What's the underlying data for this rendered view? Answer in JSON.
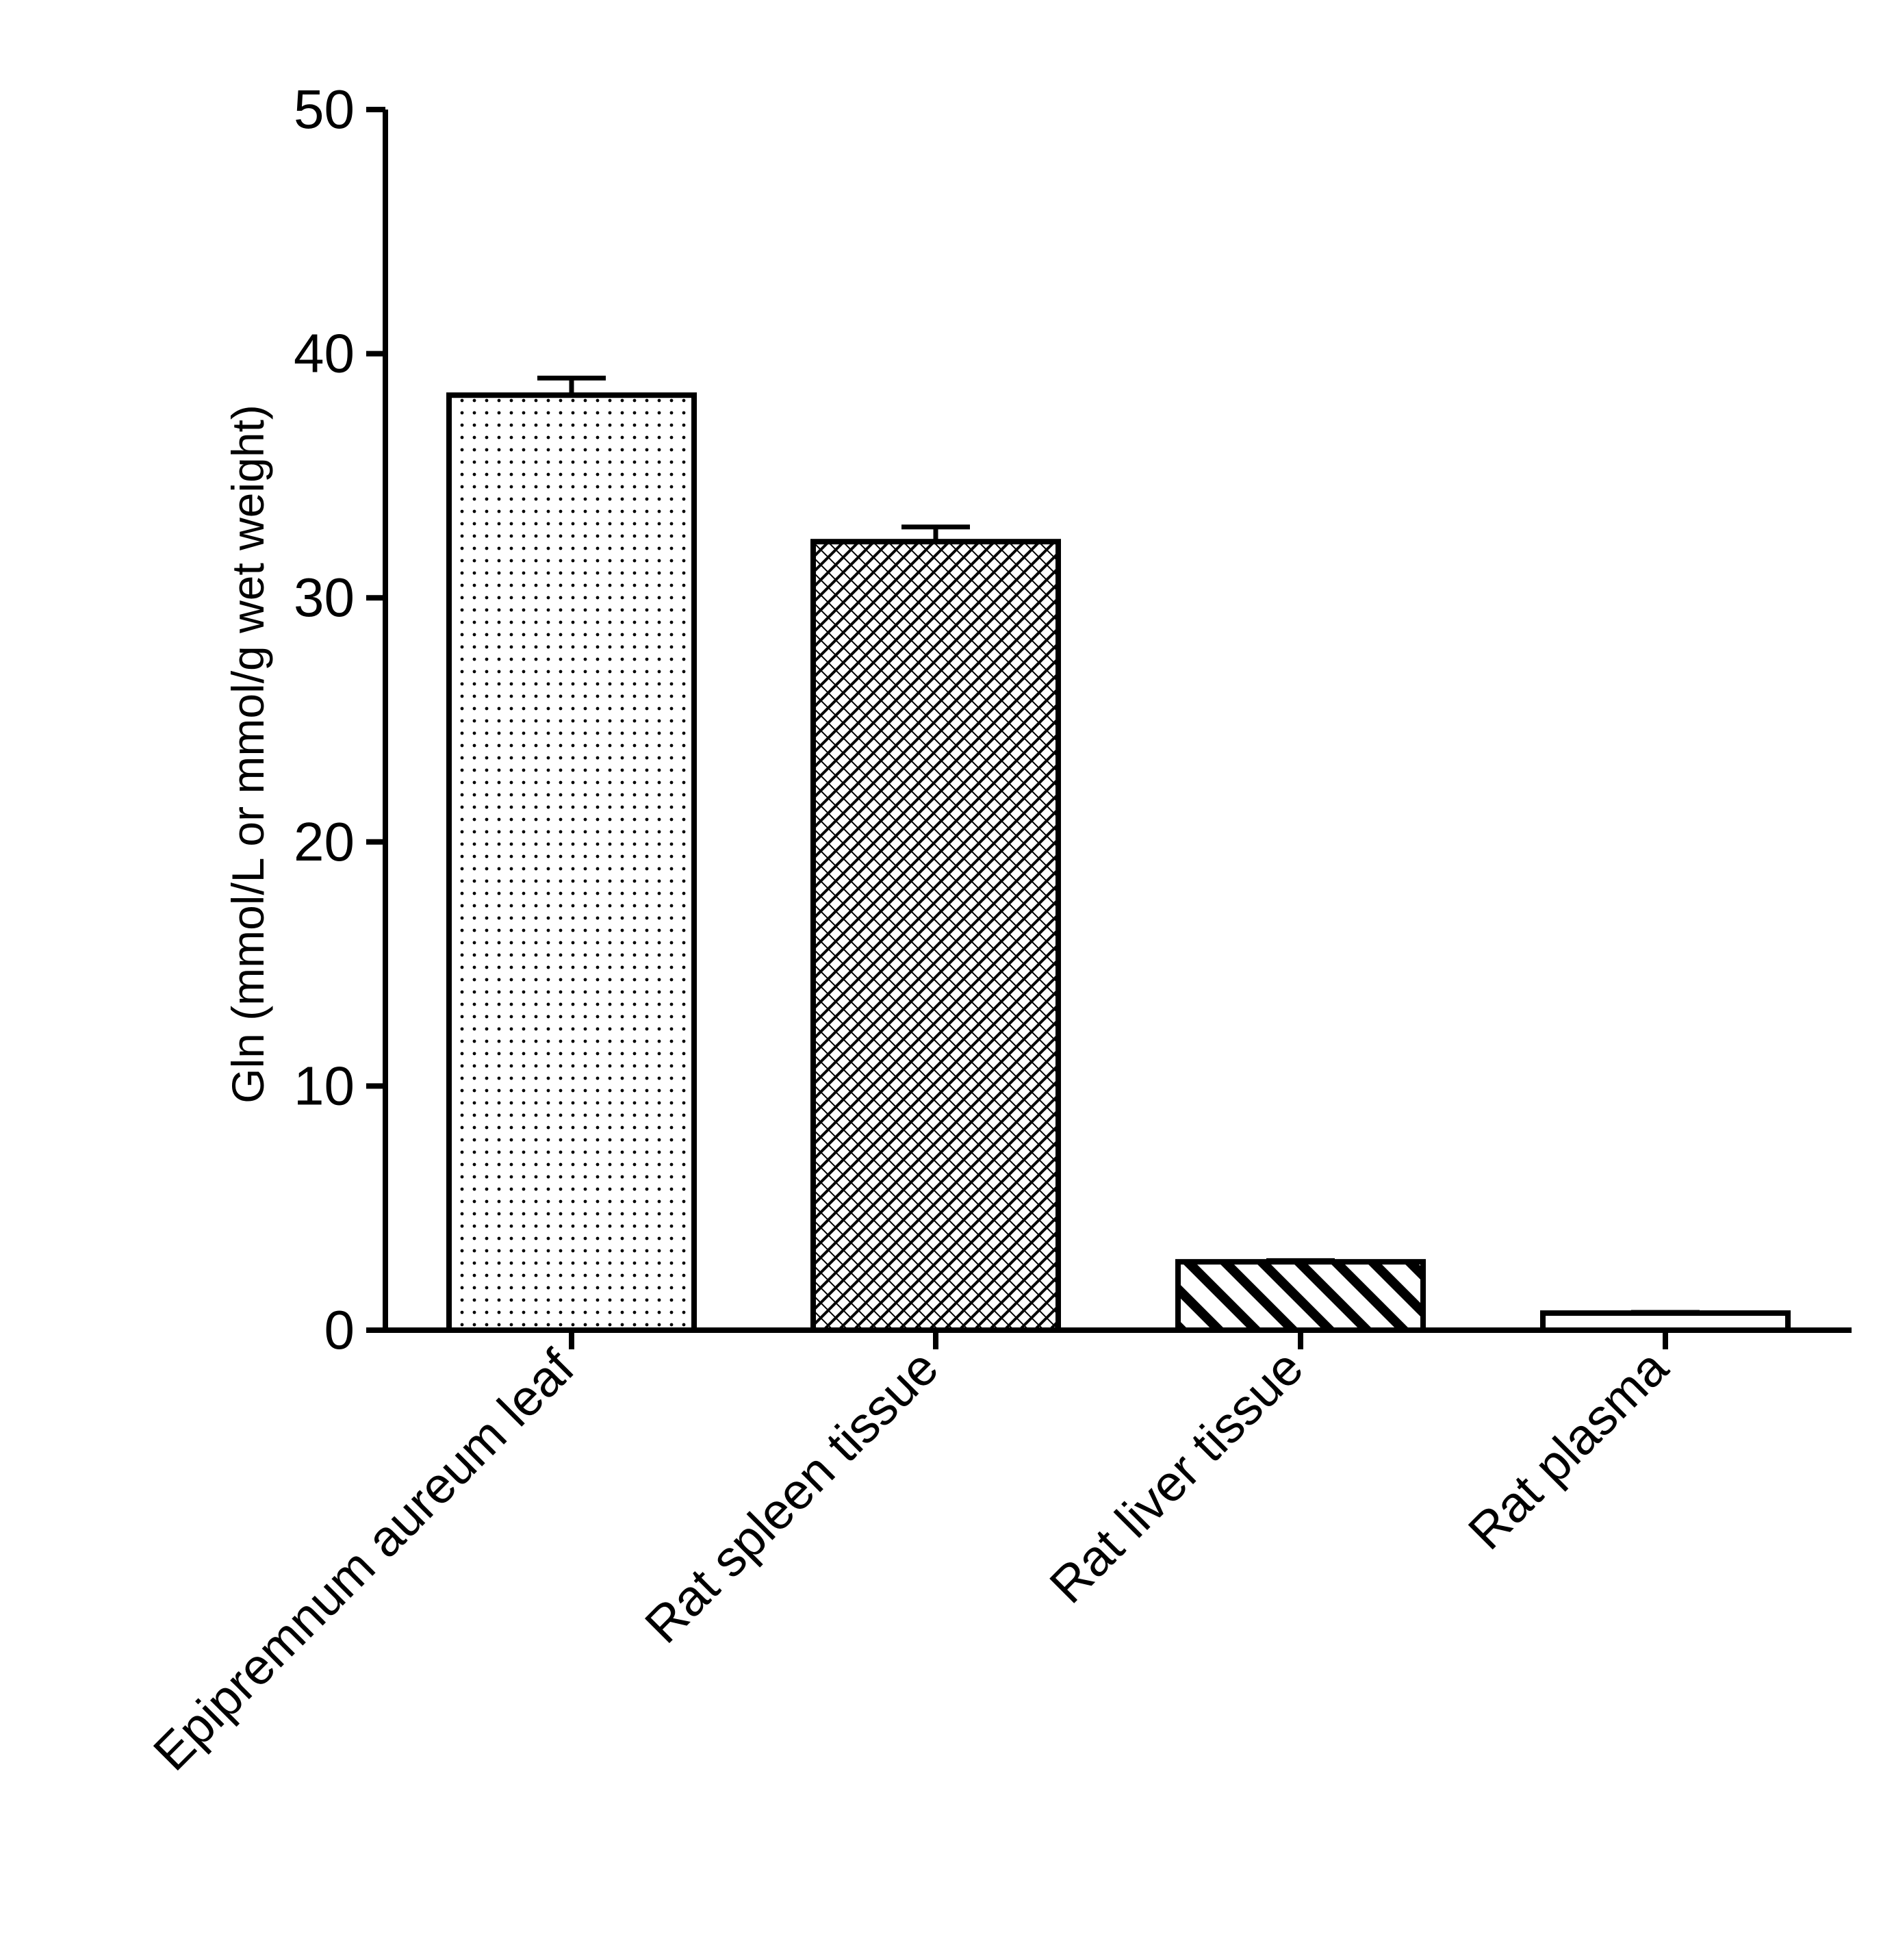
{
  "chart_data": {
    "type": "bar",
    "title": "",
    "xlabel": "",
    "ylabel": "Gln (mmol/L or mmol/g wet weight)",
    "ylim": [
      0,
      50
    ],
    "yticks": [
      0,
      10,
      20,
      30,
      40,
      50
    ],
    "grid": false,
    "categories": [
      "Epipremnum aureum leaf",
      "Rat spleen tissue",
      "Rat liver tissue",
      "Rat plasma"
    ],
    "values": [
      38.3,
      32.3,
      2.8,
      0.7
    ],
    "error": [
      0.7,
      0.6,
      0.05,
      0.03
    ],
    "patterns": [
      "dots",
      "crosshatch",
      "diagonal-stripes",
      "none"
    ],
    "colors": {
      "stroke": "#000000",
      "fill": "#ffffff"
    }
  }
}
